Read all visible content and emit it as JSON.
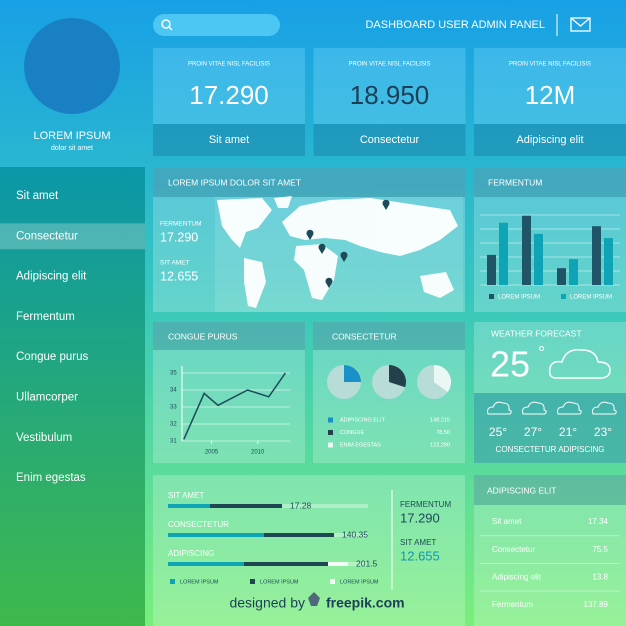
{
  "header": {
    "title": "DASHBOARD USER ADMIN PANEL"
  },
  "profile": {
    "name": "LOREM IPSUM",
    "subtitle": "dolor sit amet"
  },
  "nav": {
    "items": [
      "Sit amet",
      "Consectetur",
      "Adipiscing elit",
      "Fermentum",
      "Congue purus",
      "Ullamcorper",
      "Vestibulum",
      "Enim egestas"
    ],
    "active": 1
  },
  "stat_cards": [
    {
      "label": "PROIN VITAE NISL FACILISIS",
      "value": "17.290",
      "footer": "Sit amet"
    },
    {
      "label": "PROIN VITAE NISL FACILISIS",
      "value": "18.950",
      "footer": "Consectetur"
    },
    {
      "label": "PROIN VITAE NISL FACILISIS",
      "value": "12M",
      "footer": "Adipiscing elit"
    }
  ],
  "map_panel": {
    "title": "LOREM IPSUM DOLOR SIT AMET",
    "stats": [
      {
        "label": "FERMENTUM",
        "value": "17.290"
      },
      {
        "label": "SIT AMET",
        "value": "12.655"
      }
    ]
  },
  "chart_data": [
    {
      "type": "bar",
      "title": "FERMENTUM",
      "categories": [
        null,
        null,
        null,
        null
      ],
      "series": [
        {
          "name": "LOREM IPSUM",
          "color": "#1f5566",
          "values": [
            43,
            99,
            24,
            84
          ]
        },
        {
          "name": "LOREM IPSUM",
          "color": "#0fa3b6",
          "values": [
            89,
            73,
            37,
            67
          ]
        }
      ],
      "ylim": [
        0,
        100
      ],
      "grid": true
    },
    {
      "type": "line",
      "title": "CONGUE PURUS",
      "x": [
        2002,
        2004.2,
        2005.7,
        2008.9,
        2011.2,
        2013
      ],
      "series": [
        {
          "color": "#1d4a58",
          "values": [
            31.1,
            33.8,
            33.1,
            34.0,
            33.6,
            35.0
          ]
        }
      ],
      "xlim": [
        2001.8,
        2013.5
      ],
      "xticks": [
        2005,
        2010
      ],
      "ylim": [
        31,
        35
      ],
      "yticks": [
        31,
        32,
        33,
        34,
        35
      ],
      "grid": true
    },
    {
      "type": "pie",
      "title": "CONSECTETUR",
      "categories": [
        "ADIPISCING ELIT",
        "CONGUE",
        "ENIM EGESTAS"
      ],
      "values": [
        25,
        30,
        35
      ],
      "colors": [
        "#1a90c8",
        "#23404d",
        "#eaf7f5"
      ],
      "legend_values": [
        "148.215",
        "78.50",
        "122.290"
      ]
    }
  ],
  "weather": {
    "title": "WEATHER FORECAST",
    "temp": "25",
    "unit": "°",
    "forecast": [
      "25°",
      "27°",
      "21°",
      "23°"
    ],
    "caption": "CONSECTETUR ADIPISCING"
  },
  "progress_panel": {
    "rows": [
      {
        "label": "SIT AMET",
        "value": "17.28",
        "segments": [
          21,
          36
        ]
      },
      {
        "label": "CONSECTETUR",
        "value": "140.35",
        "segments": [
          48,
          35
        ]
      },
      {
        "label": "ADIPISCING",
        "value": "201.5",
        "segments": [
          38,
          42,
          10
        ]
      }
    ],
    "legend": [
      {
        "name": "LOREM IPSUM",
        "color": "#0fa3b6"
      },
      {
        "name": "LOREM IPSUM",
        "color": "#1f4653"
      },
      {
        "name": "LOREM IPSUM",
        "color": "#f2fbf6"
      }
    ],
    "stats": [
      {
        "label": "FERMENTUM",
        "value": "17.290"
      },
      {
        "label": "SIT AMET",
        "value": "12.655"
      }
    ]
  },
  "table": {
    "title": "ADIPISCING ELIT",
    "rows": [
      [
        "Sit amet",
        "17.34"
      ],
      [
        "Consectetur",
        "75.5"
      ],
      [
        "Adipiscing elit",
        "13.8"
      ],
      [
        "Fermentum",
        "137.89"
      ]
    ]
  },
  "footer": {
    "credit": "designed by",
    "brand": "freepik.com"
  }
}
